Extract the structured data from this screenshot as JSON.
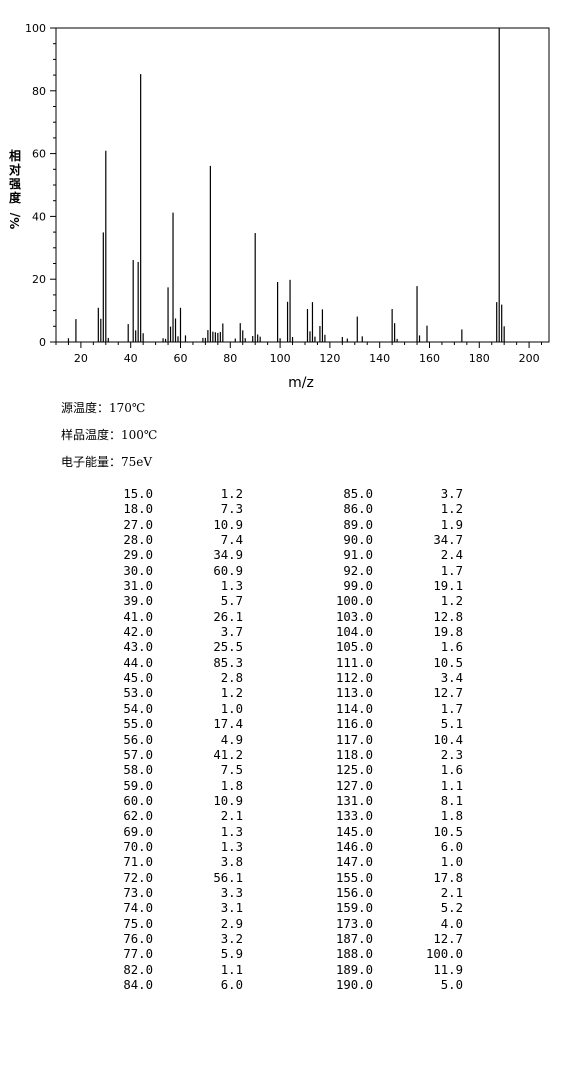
{
  "chart_data": {
    "type": "bar",
    "title": "",
    "xlabel": "m/z",
    "ylabel_chars": [
      "相",
      "对",
      "强",
      "度"
    ],
    "ylabel_suffix": "%/",
    "xlim": [
      10,
      208
    ],
    "ylim": [
      0,
      100
    ],
    "x_ticks": [
      20,
      40,
      60,
      80,
      100,
      120,
      140,
      160,
      180,
      200
    ],
    "y_ticks": [
      0,
      20,
      40,
      60,
      80,
      100
    ],
    "grid": false,
    "bar_color": "#000000",
    "peaks": [
      {
        "mz": 15.0,
        "intensity": 1.2
      },
      {
        "mz": 18.0,
        "intensity": 7.3
      },
      {
        "mz": 27.0,
        "intensity": 10.9
      },
      {
        "mz": 28.0,
        "intensity": 7.4
      },
      {
        "mz": 29.0,
        "intensity": 34.9
      },
      {
        "mz": 30.0,
        "intensity": 60.9
      },
      {
        "mz": 31.0,
        "intensity": 1.3
      },
      {
        "mz": 39.0,
        "intensity": 5.7
      },
      {
        "mz": 41.0,
        "intensity": 26.1
      },
      {
        "mz": 42.0,
        "intensity": 3.7
      },
      {
        "mz": 43.0,
        "intensity": 25.5
      },
      {
        "mz": 44.0,
        "intensity": 85.3
      },
      {
        "mz": 45.0,
        "intensity": 2.8
      },
      {
        "mz": 53.0,
        "intensity": 1.2
      },
      {
        "mz": 54.0,
        "intensity": 1.0
      },
      {
        "mz": 55.0,
        "intensity": 17.4
      },
      {
        "mz": 56.0,
        "intensity": 4.9
      },
      {
        "mz": 57.0,
        "intensity": 41.2
      },
      {
        "mz": 58.0,
        "intensity": 7.5
      },
      {
        "mz": 59.0,
        "intensity": 1.8
      },
      {
        "mz": 60.0,
        "intensity": 10.9
      },
      {
        "mz": 62.0,
        "intensity": 2.1
      },
      {
        "mz": 69.0,
        "intensity": 1.3
      },
      {
        "mz": 70.0,
        "intensity": 1.3
      },
      {
        "mz": 71.0,
        "intensity": 3.8
      },
      {
        "mz": 72.0,
        "intensity": 56.1
      },
      {
        "mz": 73.0,
        "intensity": 3.3
      },
      {
        "mz": 74.0,
        "intensity": 3.1
      },
      {
        "mz": 75.0,
        "intensity": 2.9
      },
      {
        "mz": 76.0,
        "intensity": 3.2
      },
      {
        "mz": 77.0,
        "intensity": 5.9
      },
      {
        "mz": 82.0,
        "intensity": 1.1
      },
      {
        "mz": 84.0,
        "intensity": 6.0
      },
      {
        "mz": 85.0,
        "intensity": 3.7
      },
      {
        "mz": 86.0,
        "intensity": 1.2
      },
      {
        "mz": 89.0,
        "intensity": 1.9
      },
      {
        "mz": 90.0,
        "intensity": 34.7
      },
      {
        "mz": 91.0,
        "intensity": 2.4
      },
      {
        "mz": 92.0,
        "intensity": 1.7
      },
      {
        "mz": 99.0,
        "intensity": 19.1
      },
      {
        "mz": 100.0,
        "intensity": 1.2
      },
      {
        "mz": 103.0,
        "intensity": 12.8
      },
      {
        "mz": 104.0,
        "intensity": 19.8
      },
      {
        "mz": 105.0,
        "intensity": 1.6
      },
      {
        "mz": 111.0,
        "intensity": 10.5
      },
      {
        "mz": 112.0,
        "intensity": 3.4
      },
      {
        "mz": 113.0,
        "intensity": 12.7
      },
      {
        "mz": 114.0,
        "intensity": 1.7
      },
      {
        "mz": 116.0,
        "intensity": 5.1
      },
      {
        "mz": 117.0,
        "intensity": 10.4
      },
      {
        "mz": 118.0,
        "intensity": 2.3
      },
      {
        "mz": 125.0,
        "intensity": 1.6
      },
      {
        "mz": 127.0,
        "intensity": 1.1
      },
      {
        "mz": 131.0,
        "intensity": 8.1
      },
      {
        "mz": 133.0,
        "intensity": 1.8
      },
      {
        "mz": 145.0,
        "intensity": 10.5
      },
      {
        "mz": 146.0,
        "intensity": 6.0
      },
      {
        "mz": 147.0,
        "intensity": 1.0
      },
      {
        "mz": 155.0,
        "intensity": 17.8
      },
      {
        "mz": 156.0,
        "intensity": 2.1
      },
      {
        "mz": 159.0,
        "intensity": 5.2
      },
      {
        "mz": 173.0,
        "intensity": 4.0
      },
      {
        "mz": 187.0,
        "intensity": 12.7
      },
      {
        "mz": 188.0,
        "intensity": 100.0
      },
      {
        "mz": 189.0,
        "intensity": 11.9
      },
      {
        "mz": 190.0,
        "intensity": 5.0
      }
    ]
  },
  "conditions": {
    "source_temp": "源温度：170℃",
    "sample_temp": "样品温度：100℃",
    "electron_energy": "电子能量：75eV"
  },
  "table": {
    "left": [
      [
        "15.0",
        "1.2"
      ],
      [
        "18.0",
        "7.3"
      ],
      [
        "27.0",
        "10.9"
      ],
      [
        "28.0",
        "7.4"
      ],
      [
        "29.0",
        "34.9"
      ],
      [
        "30.0",
        "60.9"
      ],
      [
        "31.0",
        "1.3"
      ],
      [
        "39.0",
        "5.7"
      ],
      [
        "41.0",
        "26.1"
      ],
      [
        "42.0",
        "3.7"
      ],
      [
        "43.0",
        "25.5"
      ],
      [
        "44.0",
        "85.3"
      ],
      [
        "45.0",
        "2.8"
      ],
      [
        "53.0",
        "1.2"
      ],
      [
        "54.0",
        "1.0"
      ],
      [
        "55.0",
        "17.4"
      ],
      [
        "56.0",
        "4.9"
      ],
      [
        "57.0",
        "41.2"
      ],
      [
        "58.0",
        "7.5"
      ],
      [
        "59.0",
        "1.8"
      ],
      [
        "60.0",
        "10.9"
      ],
      [
        "62.0",
        "2.1"
      ],
      [
        "69.0",
        "1.3"
      ],
      [
        "70.0",
        "1.3"
      ],
      [
        "71.0",
        "3.8"
      ],
      [
        "72.0",
        "56.1"
      ],
      [
        "73.0",
        "3.3"
      ],
      [
        "74.0",
        "3.1"
      ],
      [
        "75.0",
        "2.9"
      ],
      [
        "76.0",
        "3.2"
      ],
      [
        "77.0",
        "5.9"
      ],
      [
        "82.0",
        "1.1"
      ],
      [
        "84.0",
        "6.0"
      ]
    ],
    "right": [
      [
        "85.0",
        "3.7"
      ],
      [
        "86.0",
        "1.2"
      ],
      [
        "89.0",
        "1.9"
      ],
      [
        "90.0",
        "34.7"
      ],
      [
        "91.0",
        "2.4"
      ],
      [
        "92.0",
        "1.7"
      ],
      [
        "99.0",
        "19.1"
      ],
      [
        "100.0",
        "1.2"
      ],
      [
        "103.0",
        "12.8"
      ],
      [
        "104.0",
        "19.8"
      ],
      [
        "105.0",
        "1.6"
      ],
      [
        "111.0",
        "10.5"
      ],
      [
        "112.0",
        "3.4"
      ],
      [
        "113.0",
        "12.7"
      ],
      [
        "114.0",
        "1.7"
      ],
      [
        "116.0",
        "5.1"
      ],
      [
        "117.0",
        "10.4"
      ],
      [
        "118.0",
        "2.3"
      ],
      [
        "125.0",
        "1.6"
      ],
      [
        "127.0",
        "1.1"
      ],
      [
        "131.0",
        "8.1"
      ],
      [
        "133.0",
        "1.8"
      ],
      [
        "145.0",
        "10.5"
      ],
      [
        "146.0",
        "6.0"
      ],
      [
        "147.0",
        "1.0"
      ],
      [
        "155.0",
        "17.8"
      ],
      [
        "156.0",
        "2.1"
      ],
      [
        "159.0",
        "5.2"
      ],
      [
        "173.0",
        "4.0"
      ],
      [
        "187.0",
        "12.7"
      ],
      [
        "188.0",
        "100.0"
      ],
      [
        "189.0",
        "11.9"
      ],
      [
        "190.0",
        "5.0"
      ]
    ]
  }
}
